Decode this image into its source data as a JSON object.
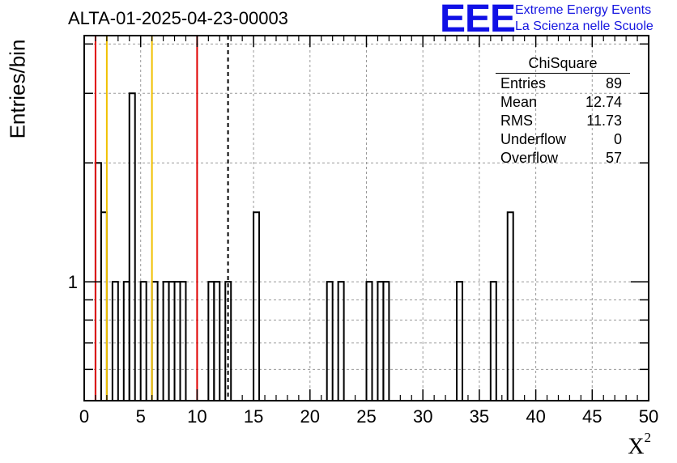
{
  "title": "ALTA-01-2025-04-23-00003",
  "logo": {
    "text": "EEE",
    "line1": "Extreme Energy Events",
    "line2": "La Scienza nelle Scuole",
    "color": "#1010e6"
  },
  "stats": {
    "title": "ChiSquare",
    "rows": [
      {
        "label": "Entries",
        "value": "89"
      },
      {
        "label": "Mean",
        "value": "12.74"
      },
      {
        "label": "RMS",
        "value": "11.73"
      },
      {
        "label": "Underflow",
        "value": "0"
      },
      {
        "label": "Overflow",
        "value": "57"
      }
    ]
  },
  "chart_data": {
    "type": "bar",
    "histogram": true,
    "xlabel": "X",
    "xlabel_superscript": "2",
    "ylabel": "Entries/bin",
    "xlim": [
      0,
      50
    ],
    "x_ticks": [
      0,
      5,
      10,
      15,
      20,
      25,
      30,
      35,
      40,
      45,
      50
    ],
    "y_scale": "log",
    "y_tick_labels": [
      1
    ],
    "grid": true,
    "bin_width": 0.5,
    "bins": [
      {
        "x": 1.0,
        "value": 2
      },
      {
        "x": 1.5,
        "value": 1.5
      },
      {
        "x": 2.5,
        "value": 1
      },
      {
        "x": 3.5,
        "value": 1
      },
      {
        "x": 4.0,
        "value": 3
      },
      {
        "x": 5.0,
        "value": 1
      },
      {
        "x": 6.0,
        "value": 1
      },
      {
        "x": 7.0,
        "value": 1
      },
      {
        "x": 7.5,
        "value": 1
      },
      {
        "x": 8.0,
        "value": 1
      },
      {
        "x": 8.5,
        "value": 1
      },
      {
        "x": 11.0,
        "value": 1
      },
      {
        "x": 11.5,
        "value": 1
      },
      {
        "x": 12.5,
        "value": 1
      },
      {
        "x": 15.0,
        "value": 1.5
      },
      {
        "x": 21.5,
        "value": 1
      },
      {
        "x": 22.5,
        "value": 1
      },
      {
        "x": 25.0,
        "value": 1
      },
      {
        "x": 26.0,
        "value": 1
      },
      {
        "x": 26.5,
        "value": 1
      },
      {
        "x": 33.0,
        "value": 1
      },
      {
        "x": 36.0,
        "value": 1
      },
      {
        "x": 37.5,
        "value": 1.5
      }
    ],
    "reference_lines": [
      {
        "x": 1.0,
        "color": "#e00000",
        "style": "solid"
      },
      {
        "x": 2.0,
        "color": "#f0c000",
        "style": "solid"
      },
      {
        "x": 6.0,
        "color": "#f0c000",
        "style": "solid"
      },
      {
        "x": 10.0,
        "color": "#e00000",
        "style": "solid"
      },
      {
        "x": 12.74,
        "color": "#000000",
        "style": "dashed"
      }
    ]
  }
}
